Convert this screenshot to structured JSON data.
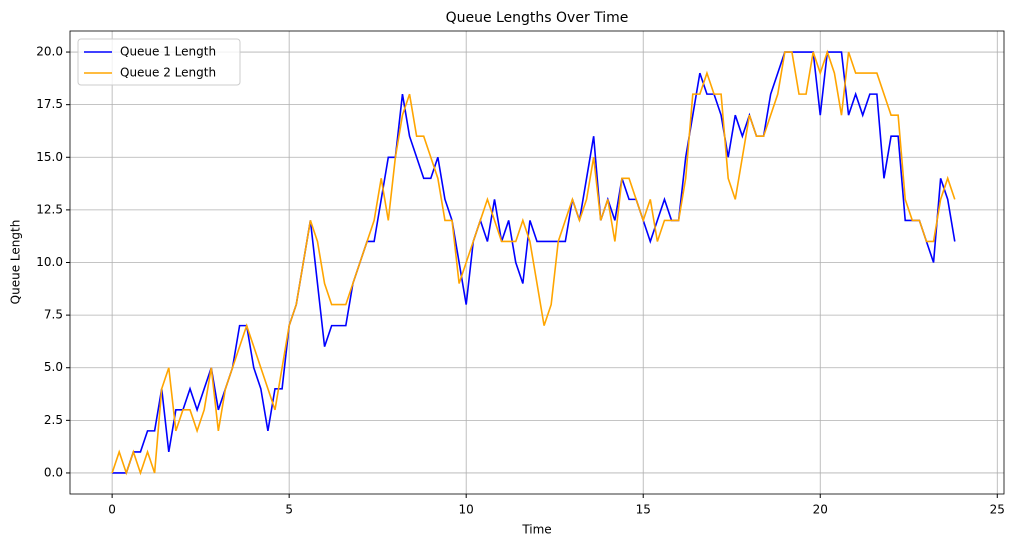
{
  "chart_data": {
    "type": "line",
    "title": "Queue Lengths Over Time",
    "xlabel": "Time",
    "ylabel": "Queue Length",
    "x": [
      0,
      0.2,
      0.4,
      0.6,
      0.8,
      1,
      1.2,
      1.4,
      1.6,
      1.8,
      2,
      2.2,
      2.4,
      2.6,
      2.8,
      3,
      3.2,
      3.4,
      3.6,
      3.8,
      4,
      4.2,
      4.4,
      4.6,
      4.8,
      5,
      5.2,
      5.4,
      5.6,
      5.8,
      6,
      6.2,
      6.4,
      6.6,
      6.8,
      7,
      7.2,
      7.4,
      7.6,
      7.8,
      8,
      8.2,
      8.4,
      8.6,
      8.8,
      9,
      9.2,
      9.4,
      9.6,
      9.8,
      10,
      10.2,
      10.4,
      10.6,
      10.8,
      11,
      11.2,
      11.4,
      11.6,
      11.8,
      12,
      12.2,
      12.4,
      12.6,
      12.8,
      13,
      13.2,
      13.4,
      13.6,
      13.8,
      14,
      14.2,
      14.4,
      14.6,
      14.8,
      15,
      15.2,
      15.4,
      15.6,
      15.8,
      16,
      16.2,
      16.4,
      16.6,
      16.8,
      17,
      17.2,
      17.4,
      17.6,
      17.8,
      18,
      18.2,
      18.4,
      18.6,
      18.8,
      19,
      19.2,
      19.4,
      19.6,
      19.8,
      20,
      20.2,
      20.4,
      20.6,
      20.8,
      21,
      21.2,
      21.4,
      21.6,
      21.8,
      22,
      22.2,
      22.4,
      22.6,
      22.8,
      23,
      23.2,
      23.4,
      23.6,
      23.8
    ],
    "series": [
      {
        "name": "Queue 1 Length",
        "color": "#0000ff",
        "values": [
          0,
          0,
          0,
          1,
          1,
          2,
          2,
          4,
          1,
          3,
          3,
          4,
          3,
          4,
          5,
          3,
          4,
          5,
          7,
          7,
          5,
          4,
          2,
          4,
          4,
          7,
          8,
          10,
          12,
          9,
          6,
          7,
          7,
          7,
          9,
          10,
          11,
          11,
          13,
          15,
          15,
          18,
          16,
          15,
          14,
          14,
          15,
          13,
          12,
          10,
          8,
          11,
          12,
          11,
          13,
          11,
          12,
          10,
          9,
          12,
          11,
          11,
          11,
          11,
          11,
          13,
          12,
          14,
          16,
          12,
          13,
          12,
          14,
          13,
          13,
          12,
          11,
          12,
          13,
          12,
          12,
          15,
          17,
          19,
          18,
          18,
          17,
          15,
          17,
          16,
          17,
          16,
          16,
          18,
          19,
          20,
          20,
          20,
          20,
          20,
          17,
          20,
          20,
          20,
          17,
          18,
          17,
          18,
          18,
          14,
          16,
          16,
          12,
          12,
          12,
          11,
          10,
          14,
          13,
          11
        ]
      },
      {
        "name": "Queue 2 Length",
        "color": "#ffa500",
        "values": [
          0,
          1,
          0,
          1,
          0,
          1,
          0,
          4,
          5,
          2,
          3,
          3,
          2,
          3,
          5,
          2,
          4,
          5,
          6,
          7,
          6,
          5,
          4,
          3,
          5,
          7,
          8,
          10,
          12,
          11,
          9,
          8,
          8,
          8,
          9,
          10,
          11,
          12,
          14,
          12,
          15,
          17,
          18,
          16,
          16,
          15,
          14,
          12,
          12,
          9,
          10,
          11,
          12,
          13,
          12,
          11,
          11,
          11,
          12,
          11,
          9,
          7,
          8,
          11,
          12,
          13,
          12,
          13,
          15,
          12,
          13,
          11,
          14,
          14,
          13,
          12,
          13,
          11,
          12,
          12,
          12,
          14,
          18,
          18,
          19,
          18,
          18,
          14,
          13,
          15,
          17,
          16,
          16,
          17,
          18,
          20,
          20,
          18,
          18,
          20,
          19,
          20,
          19,
          17,
          20,
          19,
          19,
          19,
          19,
          18,
          17,
          17,
          13,
          12,
          12,
          11,
          11,
          13,
          14,
          13
        ]
      }
    ],
    "xlim": [
      -1.19,
      25.19
    ],
    "ylim": [
      -1,
      21
    ],
    "xticks": [
      0,
      5,
      10,
      15,
      20,
      25
    ],
    "yticks": [
      {
        "value": 0,
        "label": "0.0"
      },
      2.5,
      {
        "value": 5,
        "label": "5.0"
      },
      7.5,
      {
        "value": 10,
        "label": "10.0"
      },
      12.5,
      {
        "value": 15,
        "label": "15.0"
      },
      17.5,
      {
        "value": 20,
        "label": "20.0"
      }
    ],
    "grid": true,
    "legend": "upper left"
  }
}
